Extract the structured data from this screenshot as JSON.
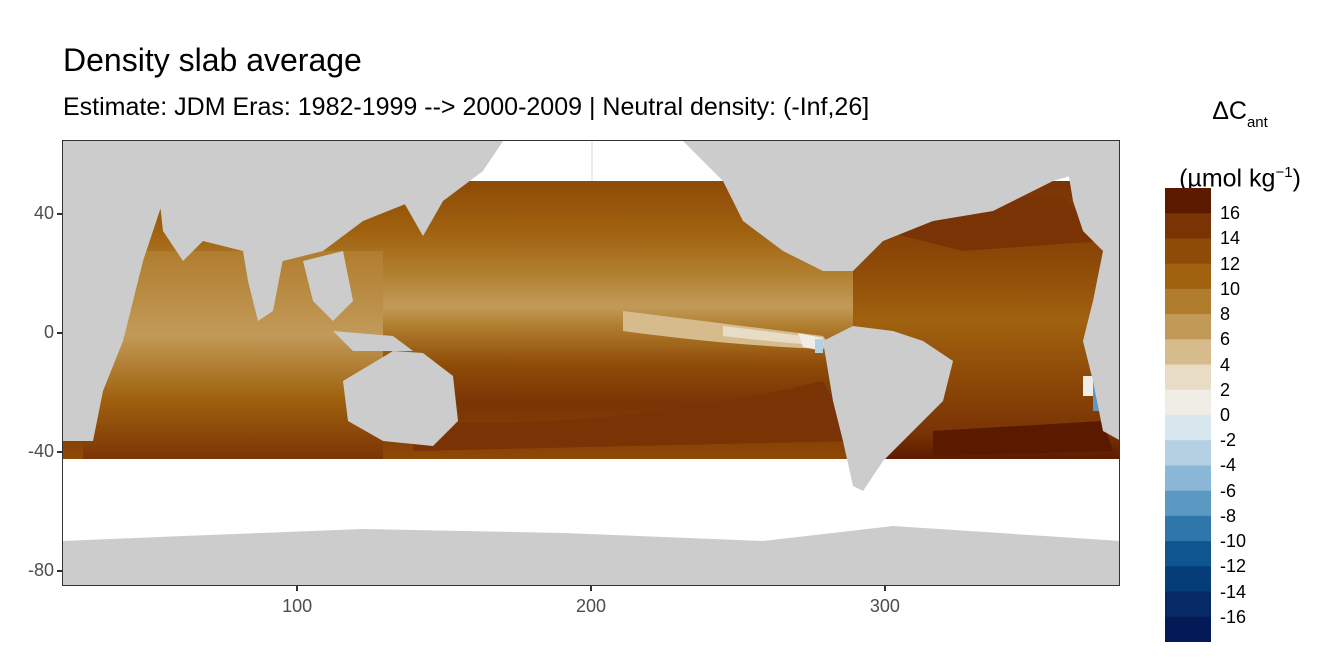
{
  "title": "Density slab average",
  "subtitle": "Estimate: JDM Eras: 1982-1999 --> 2000-2009 | Neutral density: (-Inf,26]",
  "legend": {
    "title_main": "ΔC",
    "title_sub": "ant",
    "unit_pre": "(µmol kg",
    "unit_sup": "−1",
    "unit_post": ")",
    "bins": [
      {
        "color": "#5a1a00",
        "label": "16"
      },
      {
        "color": "#7a3305",
        "label": "14"
      },
      {
        "color": "#8e4a07",
        "label": "12"
      },
      {
        "color": "#a0620f",
        "label": "10"
      },
      {
        "color": "#b07d2e",
        "label": "8"
      },
      {
        "color": "#c29a58",
        "label": "6"
      },
      {
        "color": "#d6bc8c",
        "label": "4"
      },
      {
        "color": "#e8dcc6",
        "label": "2"
      },
      {
        "color": "#f0ece6",
        "label": "0"
      },
      {
        "color": "#d8e6ee",
        "label": "-2"
      },
      {
        "color": "#b5d0e2",
        "label": "-4"
      },
      {
        "color": "#8ab8d6",
        "label": "-6"
      },
      {
        "color": "#5b99c2",
        "label": "-8"
      },
      {
        "color": "#2f77aa",
        "label": "-10"
      },
      {
        "color": "#0d5690",
        "label": "-12"
      },
      {
        "color": "#043d78",
        "label": "-14"
      },
      {
        "color": "#062a66",
        "label": "-16"
      },
      {
        "color": "#031a56",
        "label": ""
      }
    ]
  },
  "axes": {
    "x_ticks": [
      "100",
      "200",
      "300"
    ],
    "x_values": [
      100,
      200,
      300
    ],
    "y_ticks": [
      "40",
      "0",
      "-40",
      "-80"
    ],
    "y_values": [
      40,
      0,
      -40,
      -80
    ],
    "xlim": [
      20,
      380
    ],
    "ylim": [
      -85,
      65
    ]
  },
  "colors": {
    "land": "#cccccc",
    "no_data": "#ffffff",
    "grid": "#ebebeb"
  }
}
